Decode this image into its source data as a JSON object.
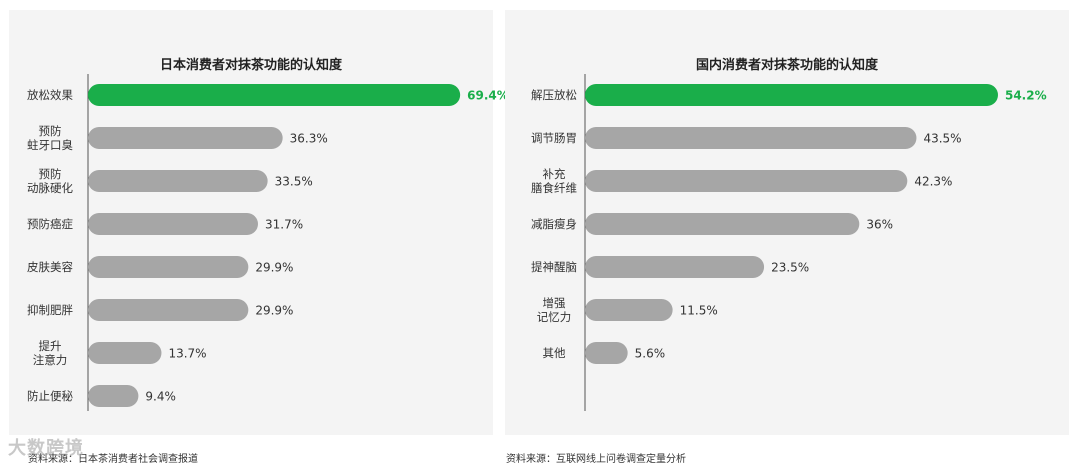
{
  "colors": {
    "highlight": "#1aae4a",
    "bar": "#a6a6a6",
    "axis": "#555555",
    "label": "#333333"
  },
  "chart_data": [
    {
      "type": "bar",
      "orientation": "horizontal",
      "title": "日本消费者对抹茶功能的认知度",
      "categories": [
        "放松效果",
        "预防\n蛀牙口臭",
        "预防\n动脉硬化",
        "预防癌症",
        "皮肤美容",
        "抑制肥胖",
        "提升\n注意力",
        "防止便秘"
      ],
      "values": [
        69.4,
        36.3,
        33.5,
        31.7,
        29.9,
        29.9,
        13.7,
        9.4
      ],
      "value_labels": [
        "69.4%",
        "36.3%",
        "33.5%",
        "31.7%",
        "29.9%",
        "29.9%",
        "13.7%",
        "9.4%"
      ],
      "highlight_index": 0,
      "xlim": [
        0,
        80
      ]
    },
    {
      "type": "bar",
      "orientation": "horizontal",
      "title": "国内消费者对抹茶功能的认知度",
      "categories": [
        "解压放松",
        "调节肠胃",
        "补充\n膳食纤维",
        "减脂瘦身",
        "提神醒脑",
        "增强\n记忆力",
        "其他"
      ],
      "values": [
        54.2,
        43.5,
        42.3,
        36,
        23.5,
        11.5,
        5.6
      ],
      "value_labels": [
        "54.2%",
        "43.5%",
        "42.3%",
        "36%",
        "23.5%",
        "11.5%",
        "5.6%"
      ],
      "highlight_index": 0,
      "xlim": [
        0,
        62.6
      ]
    }
  ],
  "sources": {
    "left": "资料来源：日本茶消费者社会调查报道",
    "right": "资料来源：互联网线上问卷调查定量分析"
  },
  "watermark": "大数跨境"
}
